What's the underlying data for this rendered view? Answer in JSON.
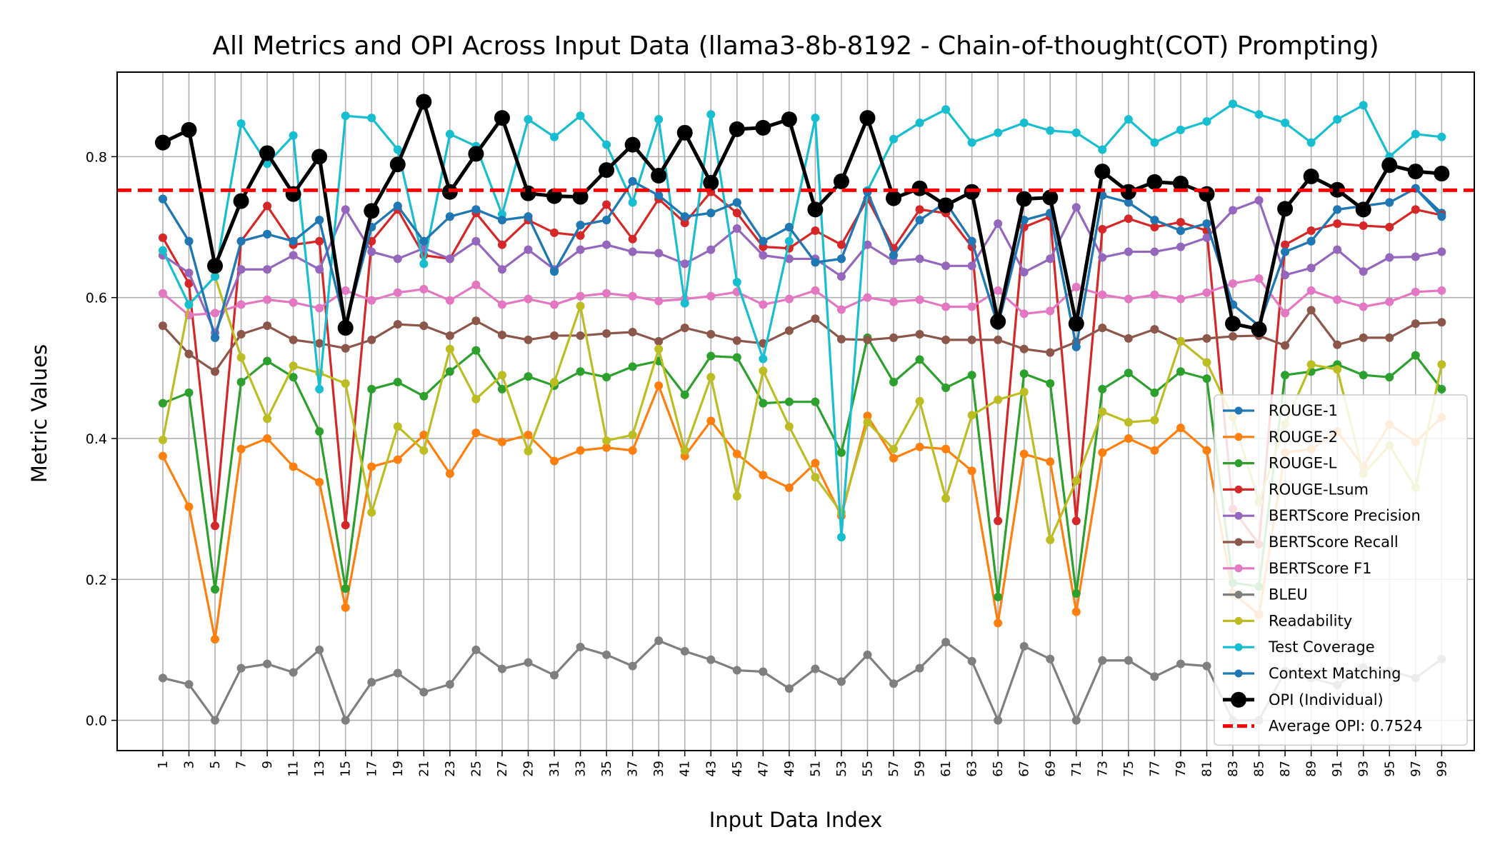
{
  "chart_data": {
    "type": "line",
    "title": "All Metrics and OPI Across Input Data (llama3-8b-8192 - Chain-of-thought(COT) Prompting)",
    "xlabel": "Input Data Index",
    "ylabel": "Metric Values",
    "xlim": [
      -2.5,
      101.5
    ],
    "ylim": [
      -0.043,
      0.92
    ],
    "x": [
      1,
      3,
      5,
      7,
      9,
      11,
      13,
      15,
      17,
      19,
      21,
      23,
      25,
      27,
      29,
      31,
      33,
      35,
      37,
      39,
      41,
      43,
      45,
      47,
      49,
      51,
      53,
      55,
      57,
      59,
      61,
      63,
      65,
      67,
      69,
      71,
      73,
      75,
      77,
      79,
      81,
      83,
      85,
      87,
      89,
      91,
      93,
      95,
      97,
      99
    ],
    "x_tick_labels": [
      "1",
      "3",
      "5",
      "7",
      "9",
      "11",
      "13",
      "15",
      "17",
      "19",
      "21",
      "23",
      "25",
      "27",
      "29",
      "31",
      "33",
      "35",
      "37",
      "39",
      "41",
      "43",
      "45",
      "47",
      "49",
      "51",
      "53",
      "55",
      "57",
      "59",
      "61",
      "63",
      "65",
      "67",
      "69",
      "71",
      "73",
      "75",
      "77",
      "79",
      "81",
      "83",
      "85",
      "87",
      "89",
      "91",
      "93",
      "95",
      "97",
      "99"
    ],
    "y_ticks": [
      0.0,
      0.2,
      0.4,
      0.6,
      0.8
    ],
    "y_tick_labels": [
      "0.0",
      "0.2",
      "0.4",
      "0.6",
      "0.8"
    ],
    "grid": true,
    "legend_position": "lower-right",
    "series": [
      {
        "name": "ROUGE-1",
        "color": "#1f77b4",
        "values": [
          0.74,
          0.68,
          0.543,
          0.68,
          0.69,
          0.68,
          0.71,
          0.56,
          0.7,
          0.73,
          0.68,
          0.715,
          0.725,
          0.71,
          0.715,
          0.637,
          0.703,
          0.71,
          0.765,
          0.745,
          0.715,
          0.72,
          0.735,
          0.68,
          0.7,
          0.65,
          0.655,
          0.75,
          0.66,
          0.71,
          0.735,
          0.68,
          0.56,
          0.71,
          0.72,
          0.53,
          0.745,
          0.735,
          0.71,
          0.695,
          0.705,
          0.59,
          0.56,
          0.665,
          0.68,
          0.725,
          0.73,
          0.735,
          0.755,
          0.72
        ]
      },
      {
        "name": "ROUGE-2",
        "color": "#ff7f0e",
        "values": [
          0.375,
          0.303,
          0.115,
          0.385,
          0.4,
          0.36,
          0.338,
          0.16,
          0.36,
          0.37,
          0.405,
          0.35,
          0.408,
          0.395,
          0.405,
          0.368,
          0.383,
          0.387,
          0.383,
          0.475,
          0.375,
          0.425,
          0.378,
          0.348,
          0.33,
          0.365,
          0.29,
          0.432,
          0.372,
          0.388,
          0.385,
          0.354,
          0.138,
          0.378,
          0.367,
          0.154,
          0.38,
          0.4,
          0.383,
          0.415,
          0.383,
          0.18,
          0.15,
          0.38,
          0.385,
          0.41,
          0.36,
          0.42,
          0.395,
          0.43
        ]
      },
      {
        "name": "ROUGE-L",
        "color": "#2ca02c",
        "values": [
          0.45,
          0.465,
          0.186,
          0.48,
          0.51,
          0.487,
          0.41,
          0.187,
          0.47,
          0.48,
          0.46,
          0.495,
          0.525,
          0.47,
          0.488,
          0.475,
          0.495,
          0.487,
          0.502,
          0.51,
          0.462,
          0.517,
          0.515,
          0.45,
          0.452,
          0.452,
          0.38,
          0.543,
          0.48,
          0.512,
          0.472,
          0.49,
          0.175,
          0.492,
          0.478,
          0.18,
          0.47,
          0.493,
          0.465,
          0.495,
          0.485,
          0.195,
          0.19,
          0.49,
          0.495,
          0.505,
          0.49,
          0.487,
          0.518,
          0.47
        ]
      },
      {
        "name": "ROUGE-Lsum",
        "color": "#d62728",
        "values": [
          0.685,
          0.62,
          0.276,
          0.68,
          0.73,
          0.675,
          0.68,
          0.277,
          0.68,
          0.725,
          0.66,
          0.655,
          0.72,
          0.675,
          0.71,
          0.692,
          0.688,
          0.732,
          0.683,
          0.74,
          0.706,
          0.75,
          0.72,
          0.672,
          0.67,
          0.695,
          0.675,
          0.74,
          0.67,
          0.725,
          0.72,
          0.672,
          0.283,
          0.7,
          0.715,
          0.283,
          0.697,
          0.712,
          0.7,
          0.707,
          0.695,
          0.3,
          0.25,
          0.675,
          0.695,
          0.705,
          0.702,
          0.7,
          0.725,
          0.717
        ]
      },
      {
        "name": "BERTScore Precision",
        "color": "#9467bd",
        "values": [
          0.66,
          0.635,
          0.55,
          0.64,
          0.64,
          0.66,
          0.64,
          0.725,
          0.665,
          0.655,
          0.67,
          0.655,
          0.68,
          0.64,
          0.668,
          0.64,
          0.668,
          0.675,
          0.665,
          0.663,
          0.648,
          0.668,
          0.698,
          0.66,
          0.655,
          0.655,
          0.63,
          0.675,
          0.652,
          0.655,
          0.645,
          0.645,
          0.705,
          0.636,
          0.655,
          0.728,
          0.657,
          0.665,
          0.665,
          0.672,
          0.685,
          0.724,
          0.738,
          0.632,
          0.642,
          0.668,
          0.637,
          0.657,
          0.658,
          0.665
        ]
      },
      {
        "name": "BERTScore Recall",
        "color": "#8c564b",
        "values": [
          0.56,
          0.52,
          0.495,
          0.548,
          0.56,
          0.54,
          0.535,
          0.528,
          0.54,
          0.562,
          0.56,
          0.546,
          0.567,
          0.547,
          0.54,
          0.546,
          0.546,
          0.549,
          0.551,
          0.538,
          0.557,
          0.548,
          0.539,
          0.535,
          0.553,
          0.57,
          0.541,
          0.54,
          0.543,
          0.548,
          0.54,
          0.54,
          0.54,
          0.527,
          0.522,
          0.537,
          0.557,
          0.542,
          0.555,
          0.538,
          0.542,
          0.545,
          0.546,
          0.532,
          0.582,
          0.533,
          0.543,
          0.543,
          0.563,
          0.565
        ]
      },
      {
        "name": "BERTScore F1",
        "color": "#e377c2",
        "values": [
          0.606,
          0.575,
          0.578,
          0.59,
          0.597,
          0.593,
          0.585,
          0.61,
          0.596,
          0.607,
          0.612,
          0.596,
          0.618,
          0.59,
          0.598,
          0.59,
          0.602,
          0.606,
          0.602,
          0.595,
          0.598,
          0.602,
          0.608,
          0.59,
          0.598,
          0.61,
          0.583,
          0.6,
          0.594,
          0.597,
          0.587,
          0.587,
          0.61,
          0.577,
          0.581,
          0.615,
          0.604,
          0.598,
          0.604,
          0.598,
          0.607,
          0.62,
          0.627,
          0.578,
          0.61,
          0.597,
          0.587,
          0.594,
          0.608,
          0.61
        ]
      },
      {
        "name": "BLEU",
        "color": "#7f7f7f",
        "values": [
          0.06,
          0.051,
          0.0,
          0.074,
          0.08,
          0.068,
          0.1,
          0.0,
          0.054,
          0.067,
          0.04,
          0.051,
          0.1,
          0.073,
          0.082,
          0.064,
          0.104,
          0.093,
          0.077,
          0.113,
          0.098,
          0.086,
          0.071,
          0.069,
          0.045,
          0.073,
          0.055,
          0.093,
          0.052,
          0.074,
          0.111,
          0.084,
          0.0,
          0.105,
          0.087,
          0.0,
          0.085,
          0.085,
          0.062,
          0.08,
          0.077,
          0.0,
          0.0,
          0.07,
          0.06,
          0.05,
          0.075,
          0.07,
          0.06,
          0.087
        ]
      },
      {
        "name": "Readability",
        "color": "#bcbd22",
        "values": [
          0.398,
          0.59,
          0.63,
          0.515,
          0.428,
          0.503,
          0.493,
          0.478,
          0.295,
          0.417,
          0.383,
          0.527,
          0.456,
          0.49,
          0.382,
          0.48,
          0.588,
          0.397,
          0.405,
          0.527,
          0.383,
          0.487,
          0.318,
          0.496,
          0.417,
          0.345,
          0.295,
          0.423,
          0.385,
          0.453,
          0.315,
          0.433,
          0.455,
          0.466,
          0.256,
          0.34,
          0.438,
          0.423,
          0.426,
          0.538,
          0.508,
          0.43,
          0.31,
          0.42,
          0.505,
          0.498,
          0.35,
          0.39,
          0.33,
          0.505
        ]
      },
      {
        "name": "Test Coverage",
        "color": "#17becf",
        "values": [
          0.667,
          0.59,
          0.63,
          0.847,
          0.79,
          0.83,
          0.47,
          0.858,
          0.855,
          0.81,
          0.648,
          0.832,
          0.815,
          0.718,
          0.853,
          0.828,
          0.858,
          0.817,
          0.735,
          0.853,
          0.592,
          0.86,
          0.622,
          0.513,
          0.68,
          0.855,
          0.26,
          0.752,
          0.825,
          0.848,
          0.867,
          0.82,
          0.834,
          0.848,
          0.837,
          0.834,
          0.81,
          0.853,
          0.82,
          0.838,
          0.85,
          0.875,
          0.86,
          0.848,
          0.82,
          0.853,
          0.873,
          0.8,
          0.832,
          0.828
        ]
      },
      {
        "name": "Context Matching",
        "color": "#1f77b4",
        "values": [
          0.74,
          0.68,
          0.543,
          0.68,
          0.69,
          0.68,
          0.71,
          0.56,
          0.7,
          0.73,
          0.68,
          0.715,
          0.725,
          0.71,
          0.715,
          0.637,
          0.703,
          0.71,
          0.765,
          0.745,
          0.715,
          0.72,
          0.735,
          0.68,
          0.7,
          0.65,
          0.655,
          0.75,
          0.66,
          0.71,
          0.735,
          0.68,
          0.56,
          0.71,
          0.72,
          0.53,
          0.745,
          0.735,
          0.71,
          0.695,
          0.705,
          0.59,
          0.56,
          0.665,
          0.68,
          0.725,
          0.73,
          0.735,
          0.755,
          0.715
        ]
      },
      {
        "name": "OPI (Individual)",
        "color": "#000000",
        "emphasis": true,
        "values": [
          0.82,
          0.838,
          0.645,
          0.737,
          0.805,
          0.747,
          0.8,
          0.557,
          0.723,
          0.789,
          0.878,
          0.75,
          0.804,
          0.855,
          0.748,
          0.744,
          0.743,
          0.781,
          0.817,
          0.773,
          0.834,
          0.763,
          0.839,
          0.841,
          0.853,
          0.725,
          0.765,
          0.855,
          0.741,
          0.755,
          0.731,
          0.75,
          0.566,
          0.74,
          0.742,
          0.563,
          0.779,
          0.75,
          0.764,
          0.762,
          0.747,
          0.563,
          0.555,
          0.726,
          0.772,
          0.753,
          0.725,
          0.788,
          0.779,
          0.776
        ]
      }
    ],
    "reference_line": {
      "name": "Average OPI: 0.7524",
      "value": 0.7524,
      "color": "#ff0000",
      "style": "dashed"
    }
  }
}
